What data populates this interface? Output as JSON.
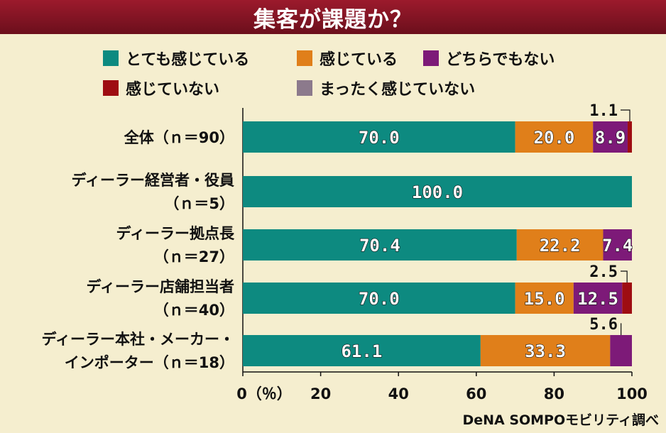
{
  "chart_data": {
    "type": "bar",
    "orientation": "horizontal",
    "stacked": true,
    "title": "集客が課題か？",
    "source": "DeNA SOMPOモビリティ調べ",
    "categories": [
      [
        "全体（ｎ＝90）"
      ],
      [
        "ディーラー経営者・役員",
        "（ｎ＝5）"
      ],
      [
        "ディーラー拠点長",
        "（ｎ＝27）"
      ],
      [
        "ディーラー店舗担当者",
        "（ｎ＝40）"
      ],
      [
        "ディーラー本社・メーカー・",
        "インポーター（ｎ＝18）"
      ]
    ],
    "series": [
      {
        "name": "とても感じている",
        "color": "#0d8a80",
        "values": [
          70.0,
          100.0,
          70.4,
          70.0,
          61.1
        ]
      },
      {
        "name": "感じている",
        "color": "#e07f1a",
        "values": [
          20.0,
          0,
          22.2,
          15.0,
          33.3
        ]
      },
      {
        "name": "どちらでもない",
        "color": "#7d1a78",
        "values": [
          8.9,
          0,
          7.4,
          12.5,
          5.6
        ]
      },
      {
        "name": "感じていない",
        "color": "#9e0d12",
        "values": [
          1.1,
          0,
          0,
          2.5,
          0
        ]
      },
      {
        "name": "まったく感じていない",
        "color": "#8c7a8c",
        "values": [
          0,
          0,
          0,
          0,
          0
        ]
      }
    ],
    "data_labels": [
      [
        {
          "text": "70.0",
          "series": 0
        },
        {
          "text": "20.0",
          "series": 1
        },
        {
          "text": "8.9",
          "series": 2
        },
        {
          "text": "1.1",
          "series": 3,
          "callout": true
        }
      ],
      [
        {
          "text": "100.0",
          "series": 0
        }
      ],
      [
        {
          "text": "70.4",
          "series": 0
        },
        {
          "text": "22.2",
          "series": 1
        },
        {
          "text": "7.4",
          "series": 2
        }
      ],
      [
        {
          "text": "70.0",
          "series": 0
        },
        {
          "text": "15.0",
          "series": 1
        },
        {
          "text": "12.5",
          "series": 2
        },
        {
          "text": "2.5",
          "series": 3,
          "callout": true
        }
      ],
      [
        {
          "text": "61.1",
          "series": 0
        },
        {
          "text": "33.3",
          "series": 1
        },
        {
          "text": "5.6",
          "series": 2,
          "callout": true
        }
      ]
    ],
    "xlim": [
      0,
      100
    ],
    "xticks": [
      0,
      20,
      40,
      60,
      80,
      100
    ],
    "xtick_labels": [
      "0（％）",
      "20",
      "40",
      "60",
      "80",
      "100"
    ],
    "grid": false,
    "legend_position": "top"
  }
}
